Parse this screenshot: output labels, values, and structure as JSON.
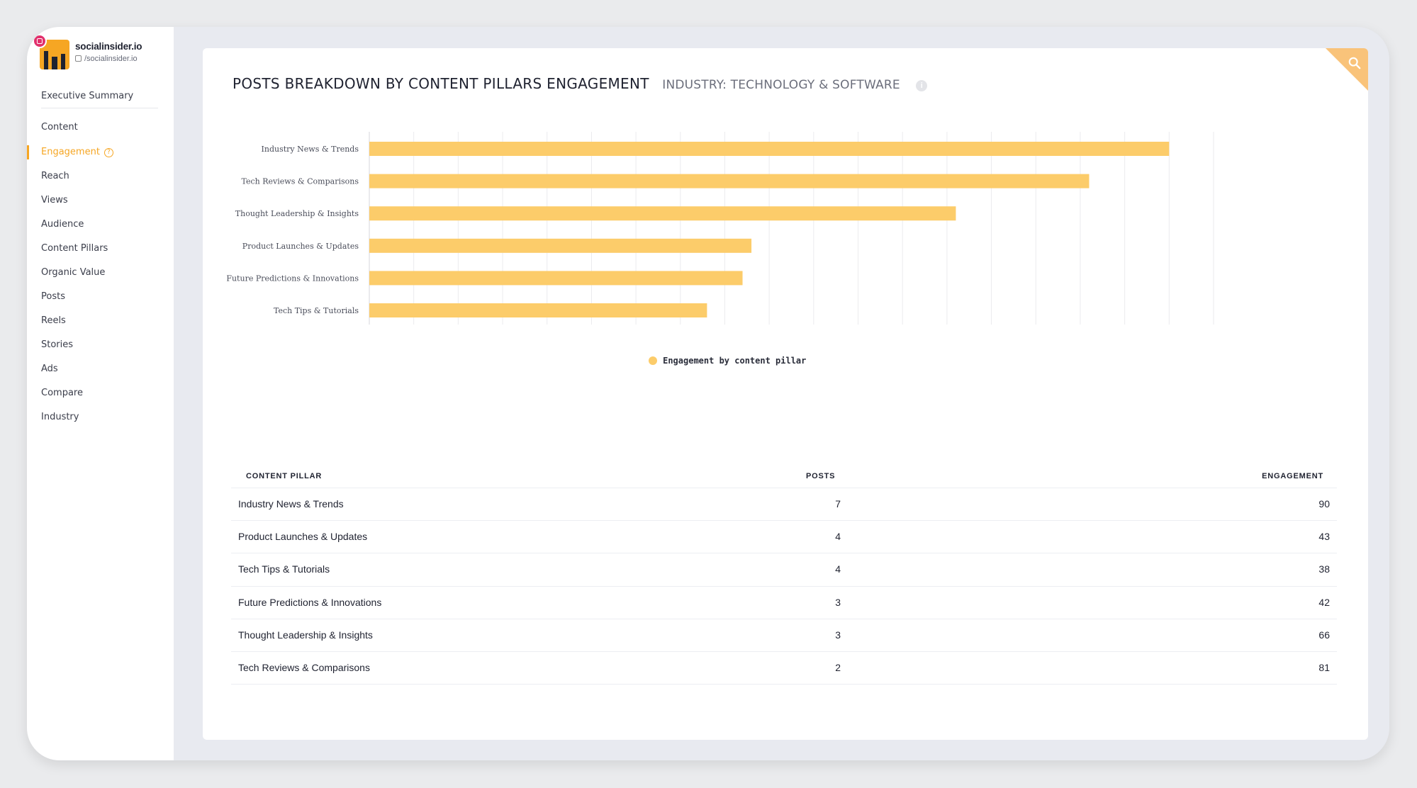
{
  "profile": {
    "name": "socialinsider.io",
    "handle": "/socialinsider.io"
  },
  "nav": {
    "items": [
      {
        "label": "Executive Summary",
        "active": false
      },
      {
        "label": "Content",
        "active": false
      },
      {
        "label": "Engagement",
        "active": true
      },
      {
        "label": "Reach",
        "active": false
      },
      {
        "label": "Views",
        "active": false
      },
      {
        "label": "Audience",
        "active": false
      },
      {
        "label": "Content Pillars",
        "active": false
      },
      {
        "label": "Organic Value",
        "active": false
      },
      {
        "label": "Posts",
        "active": false
      },
      {
        "label": "Reels",
        "active": false
      },
      {
        "label": "Stories",
        "active": false
      },
      {
        "label": "Ads",
        "active": false
      },
      {
        "label": "Compare",
        "active": false
      },
      {
        "label": "Industry",
        "active": false
      }
    ]
  },
  "header": {
    "title": "POSTS BREAKDOWN BY CONTENT PILLARS ENGAGEMENT",
    "subtitle": "INDUSTRY: TECHNOLOGY & SOFTWARE"
  },
  "colors": {
    "accent": "#f6a623",
    "bar": "#fccc6a",
    "corner": "#f9c37a"
  },
  "chart_data": {
    "type": "bar",
    "orientation": "horizontal",
    "categories": [
      "Industry News & Trends",
      "Tech Reviews & Comparisons",
      "Thought Leadership & Insights",
      "Product Launches & Updates",
      "Future Predictions & Innovations",
      "Tech Tips & Tutorials"
    ],
    "series": [
      {
        "name": "Engagement by content pillar",
        "values": [
          90,
          81,
          66,
          43,
          42,
          38
        ]
      }
    ],
    "xticks": [
      "0",
      "10",
      "20",
      "30",
      "40",
      "50",
      "60",
      "70",
      "80",
      "90"
    ],
    "xlim": [
      0,
      95
    ],
    "grid": true,
    "legend": "bottom"
  },
  "table": {
    "headers": {
      "pillar": "CONTENT PILLAR",
      "posts": "POSTS",
      "engagement": "ENGAGEMENT"
    },
    "rows": [
      {
        "pillar": "Industry News & Trends",
        "posts": "7",
        "engagement": "90"
      },
      {
        "pillar": "Product Launches & Updates",
        "posts": "4",
        "engagement": "43"
      },
      {
        "pillar": "Tech Tips & Tutorials",
        "posts": "4",
        "engagement": "38"
      },
      {
        "pillar": "Future Predictions & Innovations",
        "posts": "3",
        "engagement": "42"
      },
      {
        "pillar": "Thought Leadership & Insights",
        "posts": "3",
        "engagement": "66"
      },
      {
        "pillar": "Tech Reviews & Comparisons",
        "posts": "2",
        "engagement": "81"
      }
    ]
  }
}
